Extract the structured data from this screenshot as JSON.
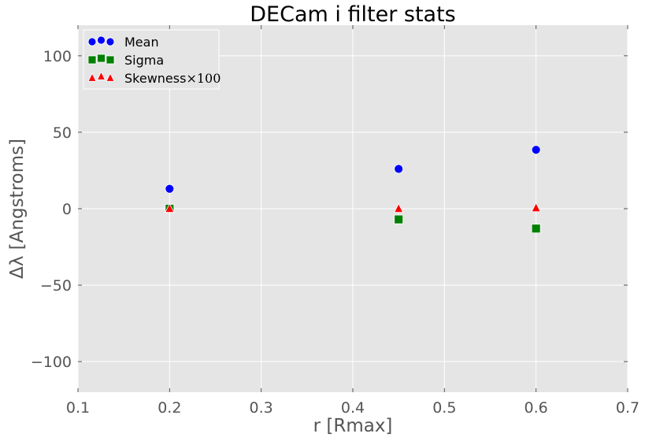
{
  "chart_data": {
    "type": "scatter",
    "title": "DECam i filter stats",
    "xlabel": "r [Rmax]",
    "ylabel": "Δλ [Angstroms]",
    "xlim": [
      0.1,
      0.7
    ],
    "ylim": [
      -120,
      120
    ],
    "xticks": [
      0.1,
      0.2,
      0.3,
      0.4,
      0.5,
      0.6,
      0.7
    ],
    "xtick_labels": [
      "0.1",
      "0.2",
      "0.3",
      "0.4",
      "0.5",
      "0.6",
      "0.7"
    ],
    "yticks": [
      -100,
      -50,
      0,
      50,
      100
    ],
    "ytick_labels": [
      "−100",
      "−50",
      "0",
      "50",
      "100"
    ],
    "grid": true,
    "legend_position": "top-left",
    "background": "#e5e5e5",
    "series": [
      {
        "name": "Mean",
        "label_math": "",
        "marker": "circle",
        "color": "#0000ff",
        "x": [
          0.2,
          0.45,
          0.6
        ],
        "y": [
          13,
          26,
          38.5
        ]
      },
      {
        "name": "Sigma",
        "label_math": "",
        "marker": "square",
        "color": "#008000",
        "x": [
          0.2,
          0.45,
          0.6
        ],
        "y": [
          0,
          -7,
          -13
        ]
      },
      {
        "name": "Skewness",
        "label_math": "×100",
        "marker": "triangle",
        "color": "#ff0000",
        "x": [
          0.2,
          0.45,
          0.6
        ],
        "y": [
          0,
          0,
          0.5
        ]
      }
    ]
  }
}
